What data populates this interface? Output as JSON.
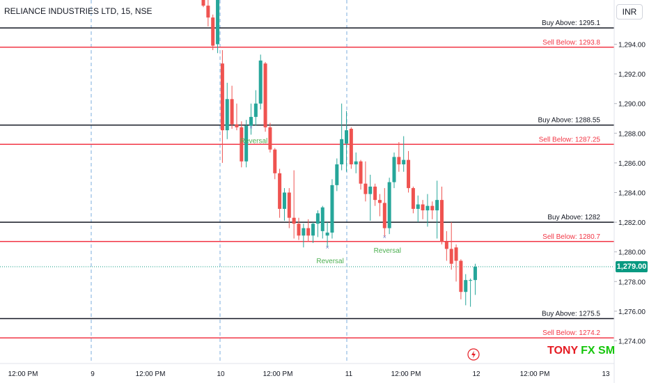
{
  "header": {
    "title": "RELIANCE INDUSTRIES LTD, 15, NSE"
  },
  "currency_button": "INR",
  "current_price_label": "1,279.00",
  "brand": {
    "part1": "TONY",
    "part2": "FX SM"
  },
  "colors": {
    "up": "#26a69a",
    "down": "#ef5350",
    "buy_line": "#131722",
    "sell_line": "#f23645",
    "reversal": "#4caf50",
    "badge": "#089981"
  },
  "chart_data": {
    "type": "candlestick",
    "ylim": [
      1273.5,
      1297.5
    ],
    "y_ticks": [
      1274,
      1276,
      1278,
      1280,
      1282,
      1284,
      1286,
      1288,
      1290,
      1292,
      1294
    ],
    "y_tick_labels": [
      "1,274.00",
      "1,276.00",
      "1,278.00",
      "1,280.00",
      "1,282.00",
      "1,284.00",
      "1,286.00",
      "1,288.00",
      "1,290.00",
      "1,292.00",
      "1,294.00"
    ],
    "x_tick_labels": [
      "12:00 PM",
      "9",
      "12:00 PM",
      "10",
      "12:00 PM",
      "11",
      "12:00 PM",
      "12",
      "12:00 PM",
      "13"
    ],
    "day_separators": [
      "9",
      "10",
      "11"
    ],
    "current_price": 1279.0,
    "levels": [
      {
        "label": "Buy Above: 1295.1",
        "price": 1295.1,
        "kind": "buy"
      },
      {
        "label": "Sell Below: 1293.8",
        "price": 1293.8,
        "kind": "sell"
      },
      {
        "label": "Buy Above: 1288.55",
        "price": 1288.55,
        "kind": "buy"
      },
      {
        "label": "Sell Below: 1287.25",
        "price": 1287.25,
        "kind": "sell"
      },
      {
        "label": "Buy Above: 1282",
        "price": 1282.0,
        "kind": "buy"
      },
      {
        "label": "Sell Below: 1280.7",
        "price": 1280.7,
        "kind": "sell"
      },
      {
        "label": "Buy Above: 1275.5",
        "price": 1275.5,
        "kind": "buy"
      },
      {
        "label": "Sell Below: 1274.2",
        "price": 1274.2,
        "kind": "sell"
      }
    ],
    "annotations": [
      {
        "text": "Reversal",
        "bar": 10,
        "price": 1288.0
      },
      {
        "text": "Reversal",
        "bar": 26,
        "price": 1279.9
      },
      {
        "text": "Reversal",
        "bar": 38,
        "price": 1280.6
      }
    ],
    "candles": [
      {
        "o": 1297.3,
        "h": 1297.9,
        "l": 1296.5,
        "c": 1296.6
      },
      {
        "o": 1296.6,
        "h": 1297.2,
        "l": 1295.2,
        "c": 1295.8
      },
      {
        "o": 1295.8,
        "h": 1296.0,
        "l": 1293.6,
        "c": 1293.9
      },
      {
        "o": 1294.0,
        "h": 1297.9,
        "l": 1293.4,
        "c": 1297.0
      },
      {
        "o": 1292.7,
        "h": 1293.6,
        "l": 1286.0,
        "c": 1288.2
      },
      {
        "o": 1288.2,
        "h": 1291.4,
        "l": 1287.6,
        "c": 1290.3
      },
      {
        "o": 1290.3,
        "h": 1291.2,
        "l": 1288.3,
        "c": 1288.6
      },
      {
        "o": 1288.6,
        "h": 1290.0,
        "l": 1288.2,
        "c": 1288.4
      },
      {
        "o": 1288.4,
        "h": 1288.8,
        "l": 1285.7,
        "c": 1286.1
      },
      {
        "o": 1286.1,
        "h": 1288.9,
        "l": 1285.7,
        "c": 1288.5
      },
      {
        "o": 1288.5,
        "h": 1290.0,
        "l": 1287.9,
        "c": 1289.1
      },
      {
        "o": 1289.1,
        "h": 1290.9,
        "l": 1288.5,
        "c": 1290.0
      },
      {
        "o": 1290.0,
        "h": 1293.3,
        "l": 1289.6,
        "c": 1292.9
      },
      {
        "o": 1292.7,
        "h": 1292.8,
        "l": 1288.1,
        "c": 1288.4
      },
      {
        "o": 1288.4,
        "h": 1288.7,
        "l": 1286.7,
        "c": 1286.9
      },
      {
        "o": 1286.9,
        "h": 1287.0,
        "l": 1284.9,
        "c": 1285.3
      },
      {
        "o": 1285.3,
        "h": 1285.6,
        "l": 1282.3,
        "c": 1282.9
      },
      {
        "o": 1282.9,
        "h": 1284.3,
        "l": 1282.1,
        "c": 1284.0
      },
      {
        "o": 1284.0,
        "h": 1284.3,
        "l": 1281.6,
        "c": 1282.3
      },
      {
        "o": 1282.3,
        "h": 1285.5,
        "l": 1280.9,
        "c": 1281.9
      },
      {
        "o": 1281.9,
        "h": 1282.3,
        "l": 1280.8,
        "c": 1281.1
      },
      {
        "o": 1281.1,
        "h": 1281.9,
        "l": 1280.3,
        "c": 1281.6
      },
      {
        "o": 1281.6,
        "h": 1282.2,
        "l": 1280.7,
        "c": 1281.1
      },
      {
        "o": 1281.1,
        "h": 1282.0,
        "l": 1280.6,
        "c": 1281.9
      },
      {
        "o": 1281.9,
        "h": 1282.8,
        "l": 1281.0,
        "c": 1282.6
      },
      {
        "o": 1281.4,
        "h": 1283.1,
        "l": 1280.9,
        "c": 1283.0
      },
      {
        "o": 1281.1,
        "h": 1282.0,
        "l": 1280.3,
        "c": 1281.3
      },
      {
        "o": 1281.3,
        "h": 1284.9,
        "l": 1280.9,
        "c": 1284.5
      },
      {
        "o": 1284.5,
        "h": 1286.3,
        "l": 1284.1,
        "c": 1285.9
      },
      {
        "o": 1285.9,
        "h": 1290.0,
        "l": 1285.5,
        "c": 1287.6
      },
      {
        "o": 1287.3,
        "h": 1289.5,
        "l": 1285.4,
        "c": 1288.2
      },
      {
        "o": 1288.3,
        "h": 1288.4,
        "l": 1285.6,
        "c": 1285.9
      },
      {
        "o": 1285.9,
        "h": 1286.7,
        "l": 1285.3,
        "c": 1286.1
      },
      {
        "o": 1286.1,
        "h": 1286.2,
        "l": 1284.2,
        "c": 1284.6
      },
      {
        "o": 1284.6,
        "h": 1286.1,
        "l": 1283.4,
        "c": 1283.9
      },
      {
        "o": 1283.9,
        "h": 1285.2,
        "l": 1282.1,
        "c": 1284.4
      },
      {
        "o": 1284.4,
        "h": 1284.6,
        "l": 1283.1,
        "c": 1283.5
      },
      {
        "o": 1283.5,
        "h": 1283.9,
        "l": 1282.4,
        "c": 1283.3
      },
      {
        "o": 1283.3,
        "h": 1284.3,
        "l": 1281.0,
        "c": 1281.6
      },
      {
        "o": 1281.6,
        "h": 1285.0,
        "l": 1281.2,
        "c": 1284.7
      },
      {
        "o": 1284.7,
        "h": 1286.7,
        "l": 1284.3,
        "c": 1286.4
      },
      {
        "o": 1286.4,
        "h": 1287.4,
        "l": 1285.4,
        "c": 1285.9
      },
      {
        "o": 1285.9,
        "h": 1287.8,
        "l": 1285.4,
        "c": 1286.2
      },
      {
        "o": 1286.2,
        "h": 1286.8,
        "l": 1284.0,
        "c": 1284.3
      },
      {
        "o": 1284.3,
        "h": 1284.4,
        "l": 1282.6,
        "c": 1282.9
      },
      {
        "o": 1282.9,
        "h": 1283.8,
        "l": 1282.0,
        "c": 1283.2
      },
      {
        "o": 1283.2,
        "h": 1283.5,
        "l": 1282.2,
        "c": 1282.8
      },
      {
        "o": 1282.8,
        "h": 1283.9,
        "l": 1281.7,
        "c": 1283.1
      },
      {
        "o": 1283.1,
        "h": 1283.4,
        "l": 1282.2,
        "c": 1282.8
      },
      {
        "o": 1282.8,
        "h": 1284.8,
        "l": 1280.9,
        "c": 1283.5
      },
      {
        "o": 1283.5,
        "h": 1284.4,
        "l": 1280.5,
        "c": 1280.7
      },
      {
        "o": 1280.7,
        "h": 1281.4,
        "l": 1279.4,
        "c": 1280.2
      },
      {
        "o": 1280.2,
        "h": 1282.0,
        "l": 1278.8,
        "c": 1279.2
      },
      {
        "o": 1280.3,
        "h": 1280.5,
        "l": 1278.0,
        "c": 1279.4
      },
      {
        "o": 1279.4,
        "h": 1279.5,
        "l": 1276.8,
        "c": 1277.3
      },
      {
        "o": 1277.3,
        "h": 1278.5,
        "l": 1276.4,
        "c": 1278.1
      },
      {
        "o": 1278.1,
        "h": 1278.2,
        "l": 1276.3,
        "c": 1278.1
      },
      {
        "o": 1278.1,
        "h": 1279.2,
        "l": 1277.1,
        "c": 1279.0
      }
    ]
  }
}
